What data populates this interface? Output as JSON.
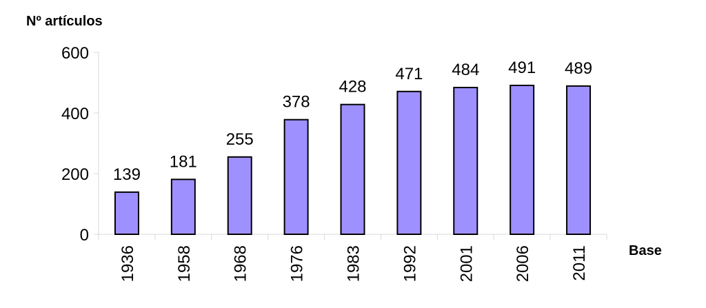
{
  "chart_data": {
    "type": "bar",
    "title": "",
    "ylabel": "Nº artículos",
    "xlabel": "Base",
    "categories": [
      "1936",
      "1958",
      "1968",
      "1976",
      "1983",
      "1992",
      "2001",
      "2006",
      "2011"
    ],
    "values": [
      139,
      181,
      255,
      378,
      428,
      471,
      484,
      491,
      489
    ],
    "ylim": [
      0,
      600
    ],
    "yticks": [
      0,
      200,
      400,
      600
    ],
    "grid": false,
    "legend": "none",
    "bar_color": "#9f90ff",
    "bar_edge_color": "#000000",
    "axis_color": "#d8d8d8"
  }
}
